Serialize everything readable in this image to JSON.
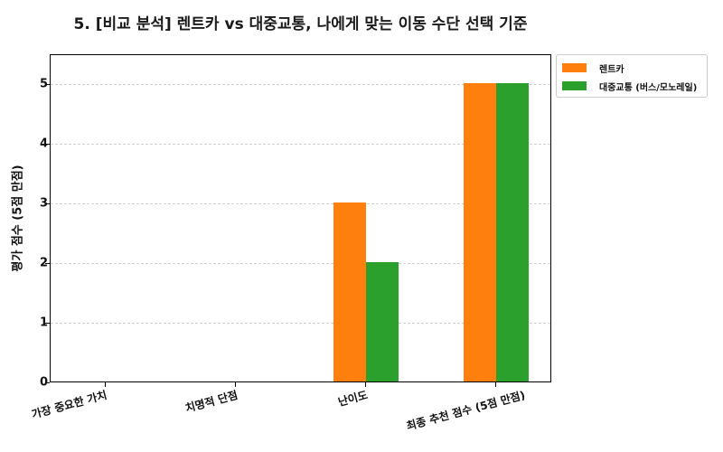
{
  "chart_data": {
    "type": "bar",
    "title": "5. [비교 분석] 렌트카 vs 대중교통, 나에게 맞는 이동 수단 선택 기준",
    "xlabel": "",
    "ylabel": "평가 점수 (5점 만점)",
    "categories": [
      "가장 중요한 가치",
      "치명적 단점",
      "난이도",
      "최종 추천 점수 (5점 만점)"
    ],
    "series": [
      {
        "name": "렌트카",
        "color": "#ff7f0e",
        "values": [
          0,
          0,
          3,
          5
        ]
      },
      {
        "name": "대중교통 (버스/모노레일)",
        "color": "#2ca02c",
        "values": [
          0,
          0,
          2,
          5
        ]
      }
    ],
    "ylim": [
      0,
      5.5
    ],
    "yticks": [
      "0",
      "1",
      "2",
      "3",
      "4",
      "5"
    ],
    "grid": true,
    "legend_position": "upper right outside"
  }
}
